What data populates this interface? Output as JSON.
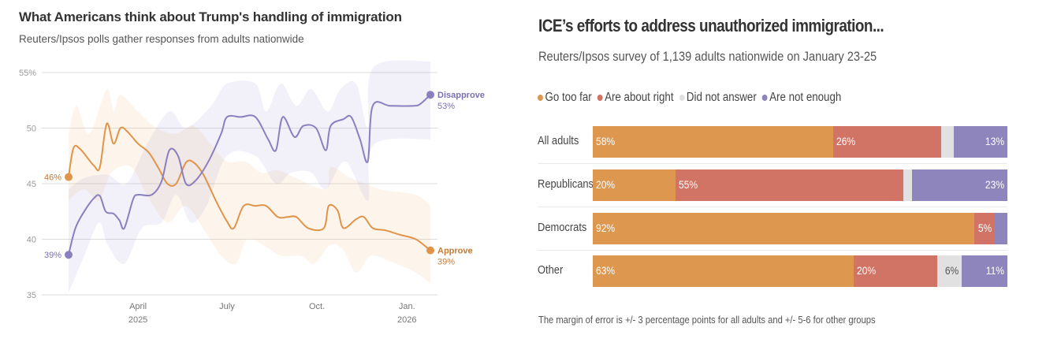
{
  "left_chart": {
    "title": "What Americans think about Trump's handling of immigration",
    "subtitle": "Reuters/Ipsos polls gather responses from adults nationwide"
  },
  "right_chart": {
    "title": "ICE’s efforts to address unauthorized immigration...",
    "subtitle": "Reuters/Ipsos survey of 1,139 adults nationwide on January 23-25",
    "footnote": "The margin of error is +/- 3 percentage points for all adults and +/- 5-6 for other groups"
  },
  "chart_data": [
    {
      "type": "line",
      "title": "What Americans think about Trump's handling of immigration",
      "subtitle": "Reuters/Ipsos polls gather responses from adults nationwide",
      "xlabel": "",
      "ylabel": "",
      "ylim": [
        35,
        55
      ],
      "yticks": [
        35,
        40,
        45,
        50,
        55
      ],
      "ytick_labels": [
        "35",
        "40",
        "45",
        "50",
        "55%"
      ],
      "xlim": [
        "2025-01-20",
        "2026-01-25"
      ],
      "xticks": [
        {
          "date": "2025-04-01",
          "label": "April",
          "sublabel": "2025"
        },
        {
          "date": "2025-07-01",
          "label": "July",
          "sublabel": ""
        },
        {
          "date": "2025-10-01",
          "label": "Oct.",
          "sublabel": ""
        },
        {
          "date": "2026-01-01",
          "label": "Jan.",
          "sublabel": "2026"
        }
      ],
      "grid": true,
      "series": [
        {
          "name": "Approve",
          "color": "#e0944a",
          "start_label": "46%",
          "end_label": "Approve",
          "end_value_label": "39%",
          "points": [
            [
              "2025-01-20",
              45.6
            ],
            [
              "2025-01-25",
              48.2
            ],
            [
              "2025-02-01",
              48.1
            ],
            [
              "2025-02-15",
              46.6
            ],
            [
              "2025-02-21",
              46.5
            ],
            [
              "2025-02-28",
              50.4
            ],
            [
              "2025-03-07",
              48.6
            ],
            [
              "2025-03-14",
              50.0
            ],
            [
              "2025-03-21",
              49.7
            ],
            [
              "2025-04-01",
              48.6
            ],
            [
              "2025-04-12",
              47.8
            ],
            [
              "2025-04-22",
              46.4
            ],
            [
              "2025-05-01",
              45.0
            ],
            [
              "2025-05-10",
              45.0
            ],
            [
              "2025-05-20",
              46.9
            ],
            [
              "2025-05-28",
              46.9
            ],
            [
              "2025-06-07",
              45.8
            ],
            [
              "2025-06-20",
              43.4
            ],
            [
              "2025-07-01",
              41.6
            ],
            [
              "2025-07-08",
              41.0
            ],
            [
              "2025-07-18",
              43.0
            ],
            [
              "2025-07-30",
              43.0
            ],
            [
              "2025-08-10",
              43.0
            ],
            [
              "2025-08-22",
              42.0
            ],
            [
              "2025-09-01",
              42.0
            ],
            [
              "2025-09-10",
              42.0
            ],
            [
              "2025-09-22",
              41.0
            ],
            [
              "2025-10-08",
              41.0
            ],
            [
              "2025-10-13",
              43.0
            ],
            [
              "2025-10-22",
              42.6
            ],
            [
              "2025-10-28",
              41.0
            ],
            [
              "2025-11-10",
              41.8
            ],
            [
              "2025-11-18",
              42.0
            ],
            [
              "2025-11-27",
              41.0
            ],
            [
              "2025-12-10",
              40.8
            ],
            [
              "2025-12-25",
              40.4
            ],
            [
              "2026-01-10",
              40.0
            ],
            [
              "2026-01-25",
              39.0
            ]
          ],
          "band_upper": [
            [
              "2025-01-20",
              49.5
            ],
            [
              "2025-01-28",
              52.0
            ],
            [
              "2025-02-10",
              49.5
            ],
            [
              "2025-02-28",
              53.5
            ],
            [
              "2025-03-07",
              51.5
            ],
            [
              "2025-03-14",
              53.0
            ],
            [
              "2025-04-01",
              51.5
            ],
            [
              "2025-04-20",
              50.0
            ],
            [
              "2025-05-10",
              49.5
            ],
            [
              "2025-05-28",
              50.2
            ],
            [
              "2025-06-15",
              48.5
            ],
            [
              "2025-07-01",
              47.0
            ],
            [
              "2025-07-20",
              47.0
            ],
            [
              "2025-08-05",
              46.0
            ],
            [
              "2025-08-22",
              46.2
            ],
            [
              "2025-09-10",
              45.5
            ],
            [
              "2025-10-10",
              44.5
            ],
            [
              "2025-10-15",
              46.5
            ],
            [
              "2025-11-05",
              45.5
            ],
            [
              "2025-12-05",
              44.5
            ],
            [
              "2026-01-10",
              44.0
            ],
            [
              "2026-01-25",
              43.0
            ]
          ],
          "band_lower": [
            [
              "2025-01-20",
              43.5
            ],
            [
              "2025-02-05",
              44.5
            ],
            [
              "2025-02-20",
              43.5
            ],
            [
              "2025-03-05",
              46.0
            ],
            [
              "2025-03-25",
              46.5
            ],
            [
              "2025-04-10",
              44.0
            ],
            [
              "2025-05-01",
              41.5
            ],
            [
              "2025-05-20",
              43.0
            ],
            [
              "2025-06-10",
              40.5
            ],
            [
              "2025-06-25",
              38.5
            ],
            [
              "2025-07-10",
              37.8
            ],
            [
              "2025-07-22",
              40.0
            ],
            [
              "2025-08-10",
              39.3
            ],
            [
              "2025-08-25",
              38.5
            ],
            [
              "2025-09-15",
              38.5
            ],
            [
              "2025-09-28",
              37.8
            ],
            [
              "2025-10-15",
              39.5
            ],
            [
              "2025-10-28",
              39.0
            ],
            [
              "2025-11-10",
              37.0
            ],
            [
              "2025-11-25",
              38.5
            ],
            [
              "2025-12-15",
              38.0
            ],
            [
              "2026-01-10",
              37.0
            ],
            [
              "2026-01-25",
              36.0
            ]
          ]
        },
        {
          "name": "Disapprove",
          "color": "#8a7fbf",
          "start_label": "39%",
          "end_label": "Disapprove",
          "end_value_label": "53%",
          "points": [
            [
              "2025-01-20",
              38.6
            ],
            [
              "2025-01-27",
              41.0
            ],
            [
              "2025-02-05",
              42.5
            ],
            [
              "2025-02-15",
              43.7
            ],
            [
              "2025-02-21",
              43.9
            ],
            [
              "2025-02-27",
              42.5
            ],
            [
              "2025-03-07",
              42.3
            ],
            [
              "2025-03-13",
              41.7
            ],
            [
              "2025-03-18",
              41.0
            ],
            [
              "2025-03-27",
              43.6
            ],
            [
              "2025-04-01",
              44.0
            ],
            [
              "2025-04-15",
              44.0
            ],
            [
              "2025-04-25",
              45.2
            ],
            [
              "2025-05-03",
              48.0
            ],
            [
              "2025-05-12",
              47.5
            ],
            [
              "2025-05-20",
              45.0
            ],
            [
              "2025-05-30",
              45.3
            ],
            [
              "2025-06-12",
              47.0
            ],
            [
              "2025-06-25",
              49.5
            ],
            [
              "2025-07-01",
              51.0
            ],
            [
              "2025-07-15",
              51.0
            ],
            [
              "2025-07-30",
              51.0
            ],
            [
              "2025-08-12",
              49.0
            ],
            [
              "2025-08-20",
              48.0
            ],
            [
              "2025-08-27",
              51.0
            ],
            [
              "2025-09-08",
              49.2
            ],
            [
              "2025-09-17",
              50.2
            ],
            [
              "2025-09-30",
              50.0
            ],
            [
              "2025-10-10",
              48.0
            ],
            [
              "2025-10-15",
              50.2
            ],
            [
              "2025-10-28",
              50.8
            ],
            [
              "2025-11-05",
              51.0
            ],
            [
              "2025-11-14",
              49.0
            ],
            [
              "2025-11-22",
              47.0
            ],
            [
              "2025-11-27",
              52.0
            ],
            [
              "2025-12-15",
              52.0
            ],
            [
              "2026-01-08",
              52.0
            ],
            [
              "2026-01-15",
              52.2
            ],
            [
              "2026-01-25",
              53.0
            ]
          ],
          "band_upper": [
            [
              "2025-01-20",
              44.5
            ],
            [
              "2025-02-05",
              45.5
            ],
            [
              "2025-03-01",
              45.8
            ],
            [
              "2025-03-20",
              45.0
            ],
            [
              "2025-04-10",
              48.5
            ],
            [
              "2025-05-03",
              51.5
            ],
            [
              "2025-05-20",
              50.0
            ],
            [
              "2025-06-15",
              52.0
            ],
            [
              "2025-07-01",
              54.0
            ],
            [
              "2025-07-30",
              54.0
            ],
            [
              "2025-08-10",
              51.5
            ],
            [
              "2025-08-25",
              54.0
            ],
            [
              "2025-09-10",
              52.0
            ],
            [
              "2025-09-25",
              53.5
            ],
            [
              "2025-10-12",
              51.5
            ],
            [
              "2025-10-25",
              53.5
            ],
            [
              "2025-11-10",
              54.0
            ],
            [
              "2025-11-22",
              50.0
            ],
            [
              "2025-11-28",
              55.5
            ],
            [
              "2026-01-25",
              56.0
            ]
          ],
          "band_lower": [
            [
              "2025-01-20",
              35.2
            ],
            [
              "2025-02-05",
              38.5
            ],
            [
              "2025-02-20",
              41.5
            ],
            [
              "2025-03-01",
              39.5
            ],
            [
              "2025-03-18",
              37.8
            ],
            [
              "2025-04-05",
              41.0
            ],
            [
              "2025-04-25",
              41.5
            ],
            [
              "2025-05-10",
              44.0
            ],
            [
              "2025-05-25",
              41.5
            ],
            [
              "2025-06-10",
              43.0
            ],
            [
              "2025-07-01",
              47.5
            ],
            [
              "2025-07-30",
              47.5
            ],
            [
              "2025-08-20",
              45.0
            ],
            [
              "2025-09-05",
              46.0
            ],
            [
              "2025-09-25",
              46.0
            ],
            [
              "2025-10-10",
              44.5
            ],
            [
              "2025-10-30",
              47.0
            ],
            [
              "2025-11-22",
              43.5
            ],
            [
              "2025-11-28",
              48.5
            ],
            [
              "2026-01-25",
              49.0
            ]
          ]
        }
      ]
    },
    {
      "type": "bar",
      "orientation": "horizontal",
      "stacked": true,
      "title": "ICE’s efforts to address unauthorized immigration...",
      "subtitle": "Reuters/Ipsos survey of 1,139 adults nationwide on January 23-25",
      "legend_position": "top-left",
      "categories": [
        "All adults",
        "Republicans",
        "Democrats",
        "Other"
      ],
      "series": [
        {
          "name": "Go too far",
          "color": "#dd974f",
          "values": [
            58,
            20,
            92,
            63
          ],
          "labels": [
            "58%",
            "20%",
            "92%",
            "63%"
          ]
        },
        {
          "name": "Are about right",
          "color": "#d17365",
          "values": [
            26,
            55,
            5,
            20
          ],
          "labels": [
            "26%",
            "55%",
            "5%",
            "20%"
          ]
        },
        {
          "name": "Did not answer",
          "color": "#e1e1e1",
          "values": [
            3,
            2,
            0,
            6
          ],
          "labels": [
            "",
            "",
            "",
            "6%"
          ]
        },
        {
          "name": "Are not enough",
          "color": "#8e85bd",
          "values": [
            13,
            23,
            3,
            11
          ],
          "labels": [
            "13%",
            "23%",
            "",
            "11%"
          ]
        }
      ],
      "xlim": [
        0,
        100
      ],
      "footnote": "The margin of error is +/- 3 percentage points for all adults and +/- 5-6 for other groups"
    }
  ]
}
